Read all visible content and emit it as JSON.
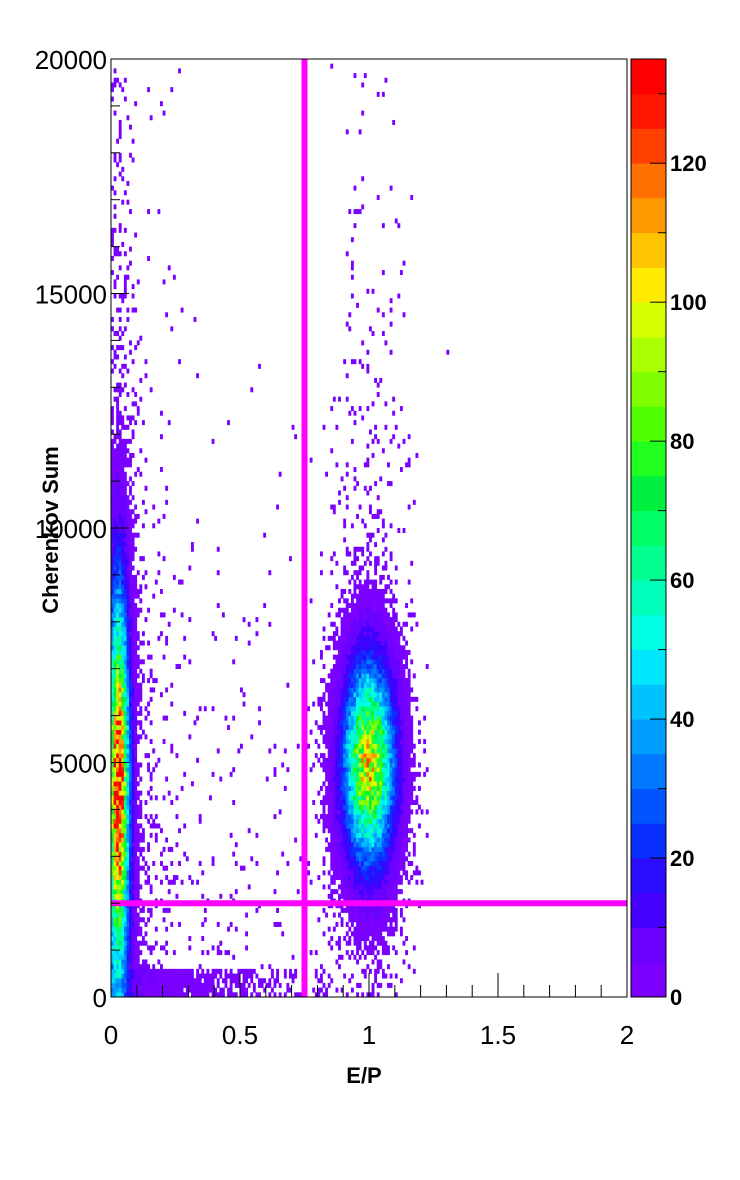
{
  "chart_data": {
    "type": "heatmap",
    "title": "",
    "xlabel": "E/P",
    "ylabel": "Cherenkov Sum",
    "xlim": [
      0,
      2
    ],
    "ylim": [
      0,
      20000
    ],
    "x_ticks": [
      {
        "value": 0,
        "label": "0"
      },
      {
        "value": 0.5,
        "label": "0.5"
      },
      {
        "value": 1,
        "label": "1"
      },
      {
        "value": 1.5,
        "label": "1.5"
      },
      {
        "value": 2,
        "label": "2"
      }
    ],
    "y_ticks": [
      {
        "value": 0,
        "label": "0"
      },
      {
        "value": 5000,
        "label": "5000"
      },
      {
        "value": 10000,
        "label": "10000"
      },
      {
        "value": 15000,
        "label": "15000"
      },
      {
        "value": 20000,
        "label": "20000"
      }
    ],
    "colorbar": {
      "range": [
        0,
        135
      ],
      "ticks": [
        {
          "value": 0,
          "label": "0"
        },
        {
          "value": 20,
          "label": "20"
        },
        {
          "value": 40,
          "label": "40"
        },
        {
          "value": 60,
          "label": "60"
        },
        {
          "value": 80,
          "label": "80"
        },
        {
          "value": 100,
          "label": "100"
        },
        {
          "value": 120,
          "label": "120"
        }
      ],
      "palette": [
        "#7a00ff",
        "#6a00ff",
        "#4400ff",
        "#2a0cff",
        "#0a30ff",
        "#0055ff",
        "#0078ff",
        "#009eff",
        "#00c2ff",
        "#00e6ff",
        "#00ffe4",
        "#00ffba",
        "#00ff90",
        "#00ff66",
        "#00f040",
        "#20ff20",
        "#50ff00",
        "#80ff00",
        "#aaff00",
        "#d4ff00",
        "#ffea00",
        "#ffc400",
        "#ff9a00",
        "#ff7000",
        "#ff4000",
        "#ff1800",
        "#ff0000"
      ]
    },
    "cuts": [
      {
        "orientation": "vertical",
        "value": 0.75,
        "color": "#ff00ff"
      },
      {
        "orientation": "horizontal",
        "value": 2000,
        "color": "#ff00ff"
      }
    ],
    "clusters": [
      {
        "name": "low E/P band",
        "x_center": 0.03,
        "y_center": 4500,
        "x_sigma": 0.025,
        "y_sigma": 2500,
        "peak_count": 130
      },
      {
        "name": "E/P ~ 1 peak",
        "x_center": 1.0,
        "y_center": 5000,
        "x_sigma": 0.06,
        "y_sigma": 1300,
        "peak_count": 100
      }
    ],
    "grid": false,
    "legend": "none"
  }
}
